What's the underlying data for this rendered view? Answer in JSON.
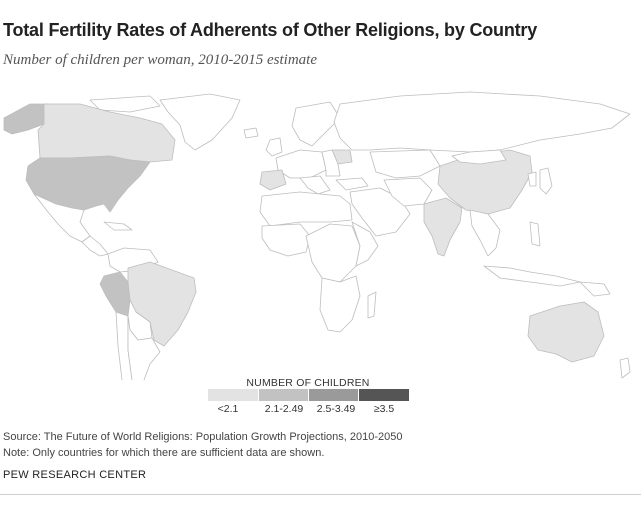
{
  "title": "Total Fertility Rates of Adherents of Other Religions, by Country",
  "subtitle": "Number of children per woman, 2010-2015 estimate",
  "colors": {
    "no_data": "#ffffff",
    "under_2_1": "#e3e3e3",
    "range_2_1_2_49": "#c2c2c2",
    "range_2_5_3_49": "#9a9a9a",
    "over_3_5": "#555555",
    "border": "#bdbdbd"
  },
  "legend": {
    "title": "NUMBER OF CHILDREN",
    "items": [
      {
        "label": "<2.1",
        "color": "#e3e3e3"
      },
      {
        "label": "2.1-2.49",
        "color": "#c2c2c2"
      },
      {
        "label": "2.5-3.49",
        "color": "#9a9a9a"
      },
      {
        "label": "≥3.5",
        "color": "#555555"
      }
    ]
  },
  "regions": [
    {
      "name": "Alaska",
      "category": "2.1-2.49"
    },
    {
      "name": "Canada",
      "category": "<2.1"
    },
    {
      "name": "United States",
      "category": "2.1-2.49"
    },
    {
      "name": "Peru",
      "category": "2.1-2.49"
    },
    {
      "name": "Brazil",
      "category": "<2.1"
    },
    {
      "name": "Spain",
      "category": "<2.1"
    },
    {
      "name": "Ukraine",
      "category": "<2.1"
    },
    {
      "name": "China",
      "category": "<2.1"
    },
    {
      "name": "India",
      "category": "<2.1"
    },
    {
      "name": "Australia",
      "category": "<2.1"
    }
  ],
  "source": "Source: The Future of World Religions: Population Growth Projections, 2010-2050",
  "note": "Note: Only countries for which there are sufficient data are shown.",
  "organization": "PEW RESEARCH CENTER"
}
